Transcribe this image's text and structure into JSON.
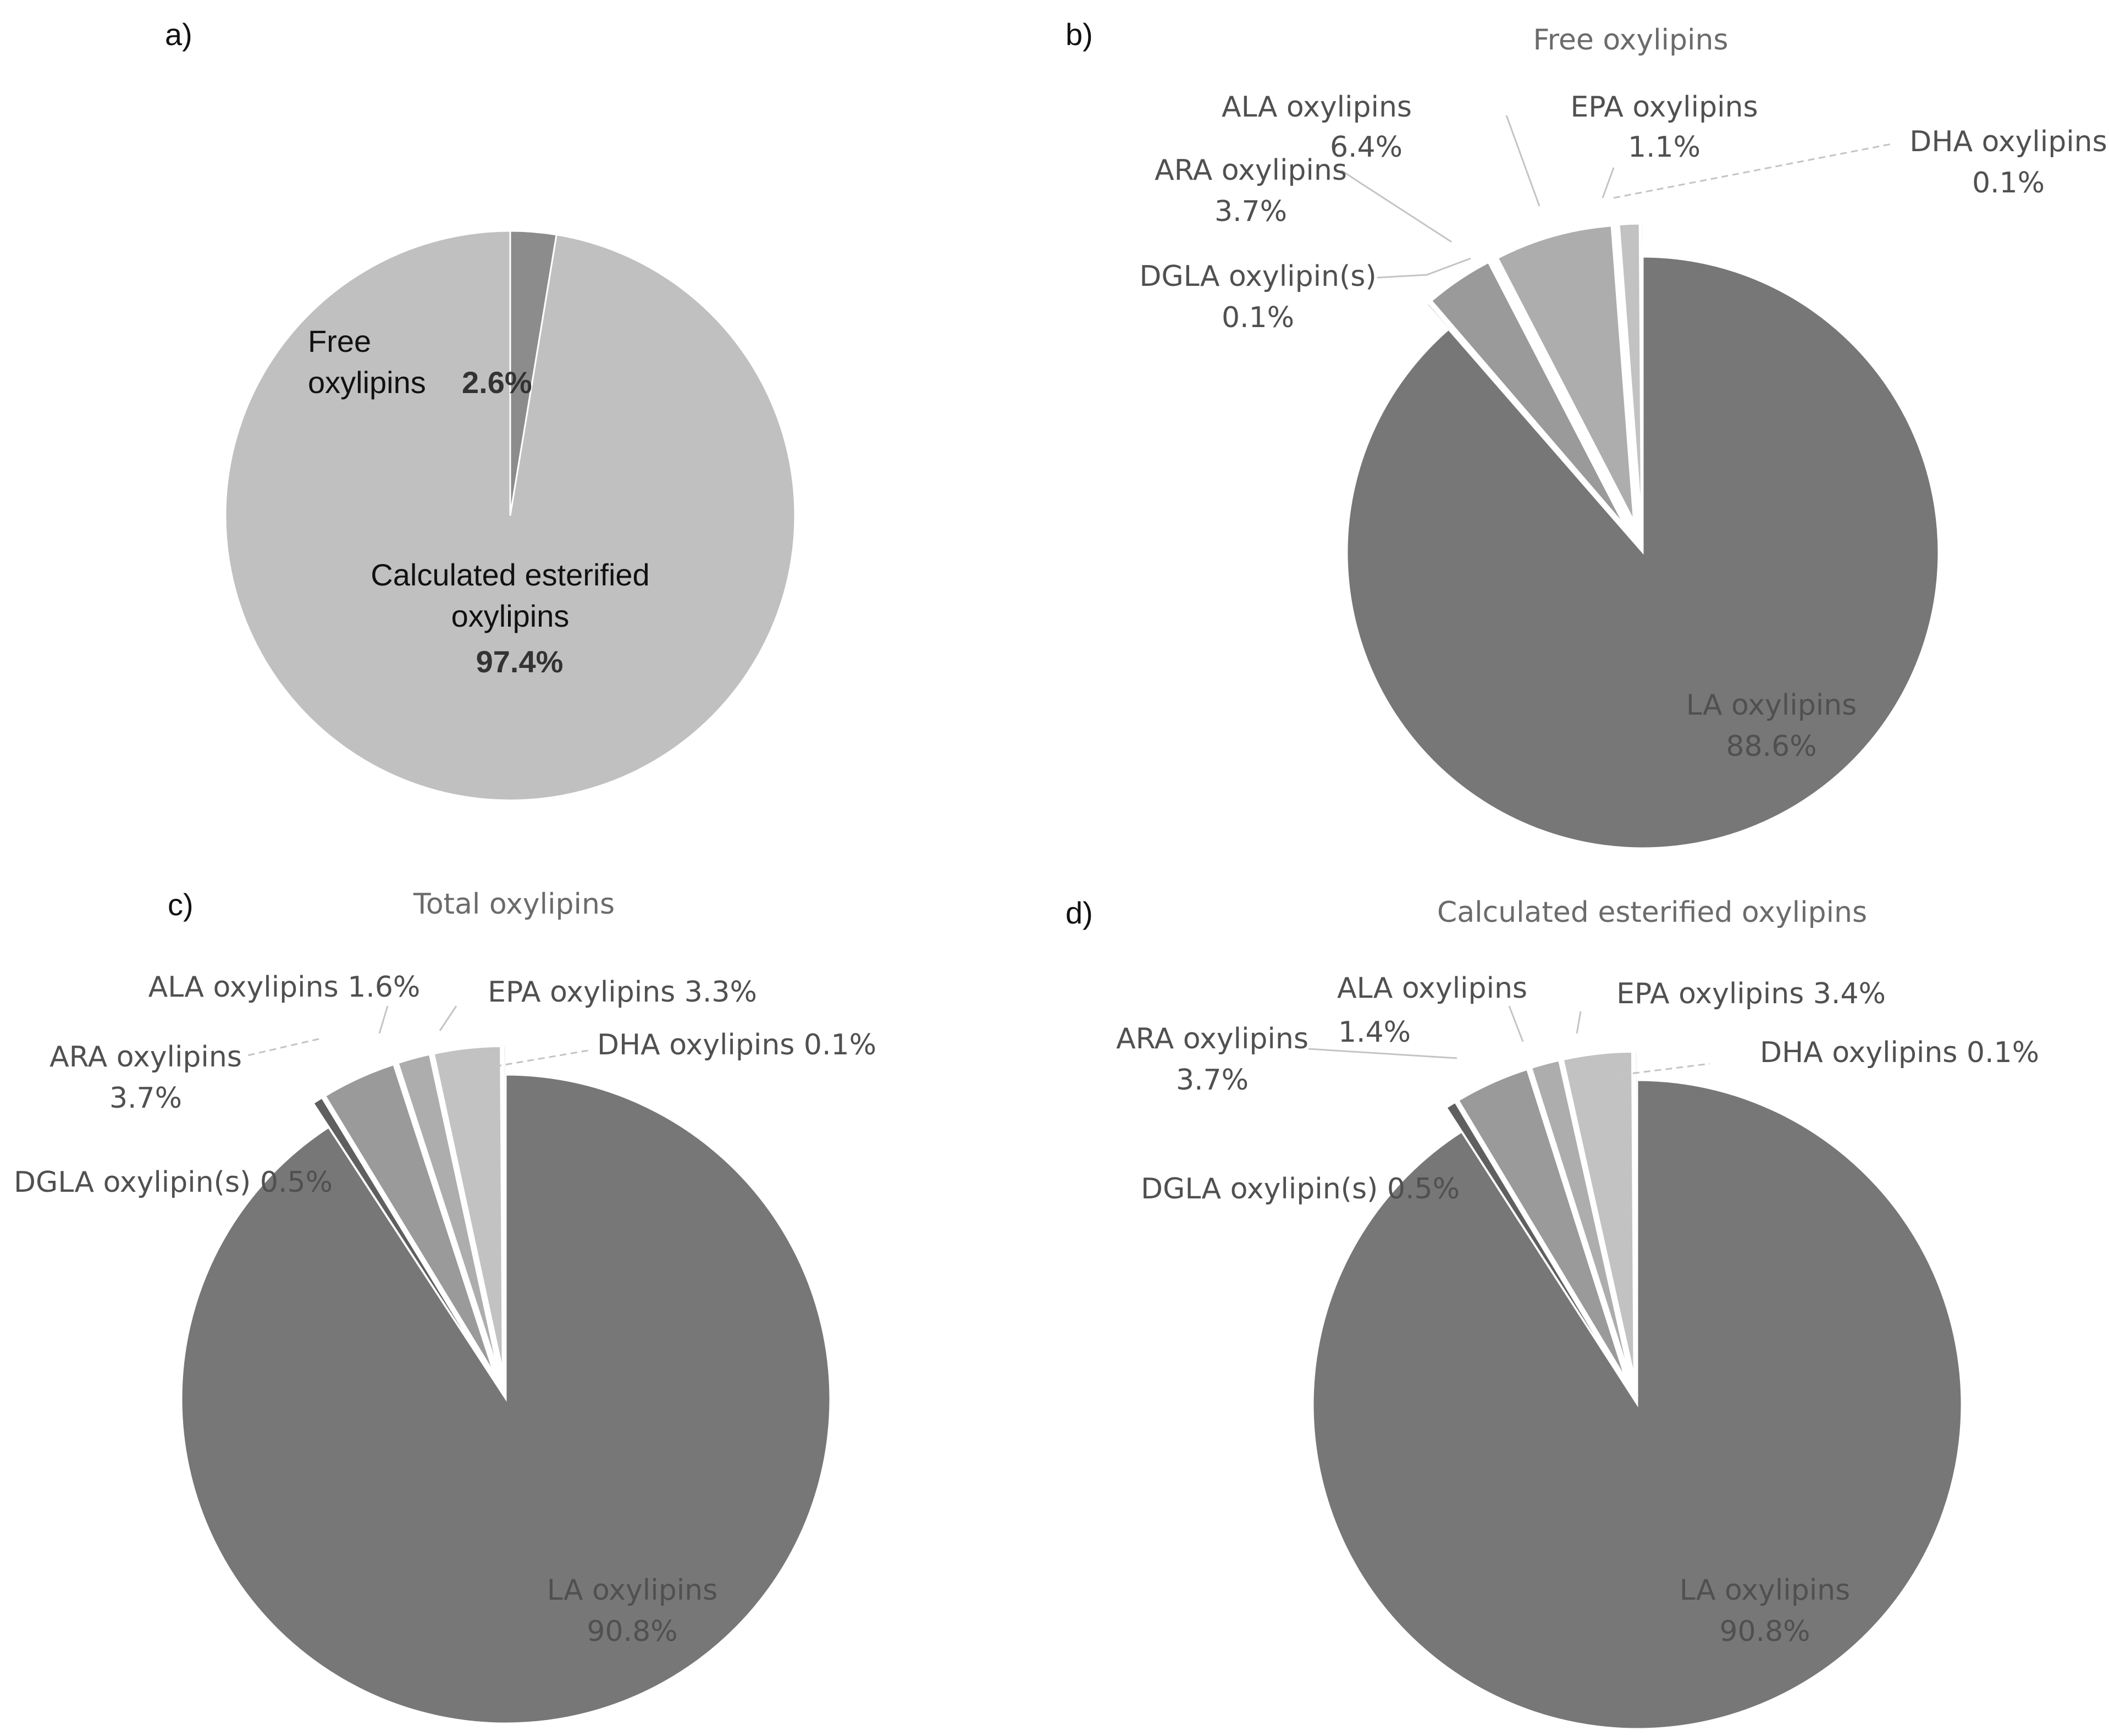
{
  "chart_data": [
    {
      "panel": "a)",
      "type": "pie",
      "title": "",
      "slices": [
        {
          "name": "Free oxylipins",
          "label_lines": [
            "Free",
            "oxylipins"
          ],
          "value_label": "2.6%",
          "value": 2.6,
          "color": "#8c8c8c"
        },
        {
          "name": "Calculated esterified oxylipins",
          "label_lines": [
            "Calculated esterified",
            "oxylipins"
          ],
          "value_label": "97.4%",
          "value": 97.4,
          "color": "#c0c0c0"
        }
      ]
    },
    {
      "panel": "b)",
      "type": "pie",
      "title": "Free oxylipins",
      "slices": [
        {
          "name": "LA oxylipins",
          "label_lines": [
            "LA oxylipins"
          ],
          "value_label": "88.6%",
          "value": 88.6,
          "color": "#777777"
        },
        {
          "name": "DGLA oxylipin(s)",
          "label_lines": [
            "DGLA oxylipin(s)"
          ],
          "value_label": "0.1%",
          "value": 0.1,
          "color": "#5f5f5f"
        },
        {
          "name": "ARA oxylipins",
          "label_lines": [
            "ARA oxylipins"
          ],
          "value_label": "3.7%",
          "value": 3.7,
          "color": "#9a9a9a"
        },
        {
          "name": "ALA oxylipins",
          "label_lines": [
            "ALA oxylipins"
          ],
          "value_label": "6.4%",
          "value": 6.4,
          "color": "#adadad"
        },
        {
          "name": "EPA oxylipins",
          "label_lines": [
            "EPA oxylipins"
          ],
          "value_label": "1.1%",
          "value": 1.1,
          "color": "#c2c2c2"
        },
        {
          "name": "DHA oxylipins",
          "label_lines": [
            "DHA oxylipins"
          ],
          "value_label": "0.1%",
          "value": 0.1,
          "color": "#d8d8d8"
        }
      ]
    },
    {
      "panel": "c)",
      "type": "pie",
      "title": "Total oxylipins",
      "slices": [
        {
          "name": "LA oxylipins",
          "label_lines": [
            "LA oxylipins"
          ],
          "value_label": "90.8%",
          "value": 90.8,
          "color": "#777777"
        },
        {
          "name": "DGLA oxylipin(s)",
          "label_lines": [
            "DGLA oxylipin(s) 0.5%"
          ],
          "value_label": "",
          "value": 0.5,
          "color": "#5f5f5f"
        },
        {
          "name": "ARA oxylipins",
          "label_lines": [
            "ARA oxylipins"
          ],
          "value_label": "3.7%",
          "value": 3.7,
          "color": "#9a9a9a"
        },
        {
          "name": "ALA oxylipins",
          "label_lines": [
            "ALA oxylipins 1.6%"
          ],
          "value_label": "",
          "value": 1.6,
          "color": "#adadad"
        },
        {
          "name": "EPA oxylipins",
          "label_lines": [
            "EPA oxylipins 3.3%"
          ],
          "value_label": "",
          "value": 3.3,
          "color": "#c2c2c2"
        },
        {
          "name": "DHA oxylipins",
          "label_lines": [
            "DHA oxylipins 0.1%"
          ],
          "value_label": "",
          "value": 0.1,
          "color": "#d8d8d8"
        }
      ]
    },
    {
      "panel": "d)",
      "type": "pie",
      "title": "Calculated esterified oxylipins",
      "slices": [
        {
          "name": "LA oxylipins",
          "label_lines": [
            "LA oxylipins"
          ],
          "value_label": "90.8%",
          "value": 90.8,
          "color": "#777777"
        },
        {
          "name": "DGLA oxylipin(s)",
          "label_lines": [
            "DGLA oxylipin(s) 0.5%"
          ],
          "value_label": "",
          "value": 0.5,
          "color": "#5f5f5f"
        },
        {
          "name": "ARA oxylipins",
          "label_lines": [
            "ARA oxylipins"
          ],
          "value_label": "3.7%",
          "value": 3.7,
          "color": "#9a9a9a"
        },
        {
          "name": "ALA oxylipins",
          "label_lines": [
            "ALA oxylipins"
          ],
          "value_label": "1.4%",
          "value": 1.4,
          "color": "#adadad"
        },
        {
          "name": "EPA oxylipins",
          "label_lines": [
            "EPA oxylipins 3.4%"
          ],
          "value_label": "",
          "value": 3.4,
          "color": "#c2c2c2"
        },
        {
          "name": "DHA oxylipins",
          "label_lines": [
            "DHA oxylipins 0.1%"
          ],
          "value_label": "",
          "value": 0.1,
          "color": "#d8d8d8"
        }
      ]
    }
  ]
}
